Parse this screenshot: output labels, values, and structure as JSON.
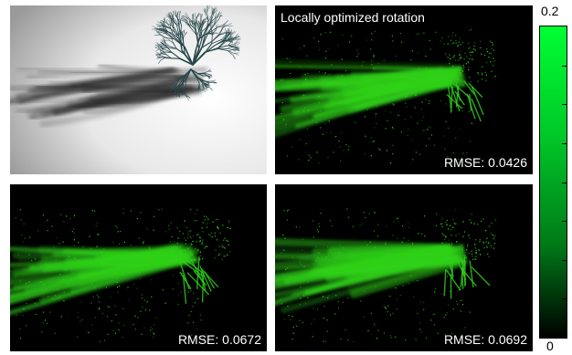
{
  "panels": {
    "reference": {
      "title": ""
    },
    "top_right": {
      "caption": "Locally optimized rotation",
      "metric": "RMSE: 0.0426"
    },
    "bottom_left": {
      "metric": "RMSE: 0.0672"
    },
    "bottom_right": {
      "metric": "RMSE: 0.0692"
    }
  },
  "colorbar": {
    "max_label": "0.2",
    "min_label": "0",
    "gradient_top": "#00ff33",
    "gradient_bottom": "#000000"
  },
  "colors": {
    "error_green": "#2fd21a",
    "tree_color": "#27464a",
    "shadow_color": "#1e1e1e"
  }
}
